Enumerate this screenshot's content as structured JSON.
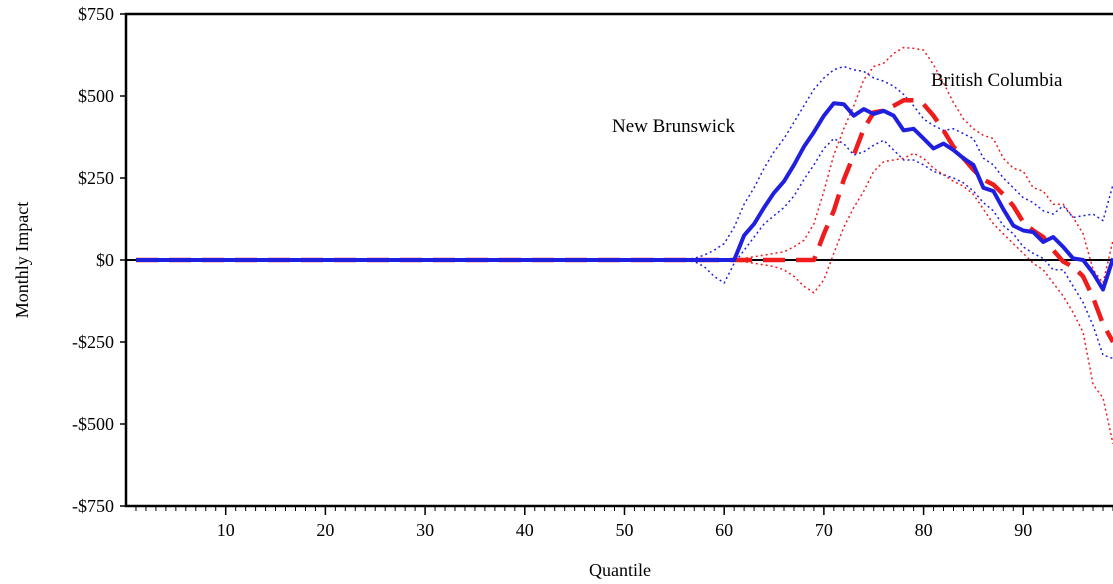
{
  "chart_data": {
    "type": "line",
    "title": "",
    "xlabel": "Quantile",
    "ylabel": "Monthly Impact",
    "xlim": [
      0,
      99
    ],
    "ylim": [
      -750,
      750
    ],
    "x_ticks": [
      10,
      20,
      30,
      40,
      50,
      60,
      70,
      80,
      90
    ],
    "y_ticks": [
      750,
      500,
      250,
      0,
      -250,
      -500,
      -750
    ],
    "y_tick_labels": [
      "$750",
      "$500",
      "$250",
      "$0",
      "-$250",
      "-$500",
      "-$750"
    ],
    "grid": false,
    "zero_line": true,
    "series": [
      {
        "name": "New Brunswick",
        "color": "#1f1fe0",
        "style": "solid-thick",
        "x": [
          1,
          10,
          20,
          30,
          40,
          50,
          55,
          58,
          60,
          61,
          62,
          63,
          64,
          65,
          66,
          67,
          68,
          69,
          70,
          71,
          72,
          73,
          74,
          75,
          76,
          77,
          78,
          79,
          80,
          81,
          82,
          83,
          84,
          85,
          86,
          87,
          88,
          89,
          90,
          91,
          92,
          93,
          94,
          95,
          96,
          97,
          98,
          99
        ],
        "values": [
          0,
          0,
          0,
          0,
          0,
          0,
          0,
          0,
          0,
          0,
          75,
          110,
          160,
          205,
          240,
          290,
          345,
          390,
          440,
          478,
          475,
          440,
          460,
          445,
          455,
          440,
          395,
          400,
          370,
          340,
          355,
          335,
          310,
          290,
          220,
          210,
          155,
          105,
          90,
          85,
          55,
          70,
          40,
          5,
          0,
          -40,
          -90,
          5
        ]
      },
      {
        "name": "British Columbia",
        "color": "#ee1c1c",
        "style": "dashed-thick",
        "x": [
          1,
          10,
          20,
          30,
          40,
          50,
          55,
          60,
          65,
          68,
          69,
          70,
          71,
          72,
          73,
          74,
          75,
          76,
          77,
          78,
          79,
          80,
          81,
          82,
          83,
          84,
          85,
          86,
          87,
          88,
          89,
          90,
          91,
          92,
          93,
          94,
          95,
          96,
          97,
          98,
          99
        ],
        "values": [
          0,
          0,
          0,
          0,
          0,
          0,
          0,
          0,
          0,
          0,
          0,
          80,
          150,
          245,
          320,
          400,
          450,
          455,
          470,
          487,
          487,
          475,
          440,
          395,
          345,
          310,
          275,
          245,
          230,
          200,
          165,
          115,
          90,
          70,
          30,
          -5,
          -20,
          -50,
          -115,
          -195,
          -250
        ]
      },
      {
        "name": "New Brunswick upper bound",
        "color": "#1f1fe0",
        "style": "dotted",
        "x": [
          1,
          10,
          20,
          30,
          40,
          50,
          55,
          57,
          58,
          59,
          60,
          61,
          62,
          63,
          64,
          65,
          66,
          67,
          68,
          69,
          70,
          71,
          72,
          73,
          74,
          75,
          76,
          77,
          78,
          79,
          80,
          81,
          82,
          83,
          84,
          85,
          86,
          87,
          88,
          89,
          90,
          91,
          92,
          93,
          94,
          95,
          96,
          97,
          98,
          99
        ],
        "values": [
          0,
          0,
          0,
          0,
          0,
          0,
          0,
          5,
          15,
          30,
          50,
          100,
          170,
          220,
          280,
          330,
          370,
          420,
          470,
          520,
          555,
          580,
          590,
          580,
          575,
          555,
          545,
          530,
          505,
          470,
          430,
          410,
          395,
          400,
          385,
          370,
          310,
          290,
          250,
          220,
          190,
          175,
          150,
          140,
          165,
          130,
          135,
          140,
          120,
          230
        ]
      },
      {
        "name": "New Brunswick lower bound",
        "color": "#1f1fe0",
        "style": "dotted",
        "x": [
          1,
          10,
          20,
          30,
          40,
          50,
          55,
          57,
          58,
          59,
          60,
          61,
          62,
          63,
          64,
          65,
          66,
          67,
          68,
          69,
          70,
          71,
          72,
          73,
          74,
          75,
          76,
          77,
          78,
          79,
          80,
          81,
          82,
          83,
          84,
          85,
          86,
          87,
          88,
          89,
          90,
          91,
          92,
          93,
          94,
          95,
          96,
          97,
          98,
          99
        ],
        "values": [
          0,
          0,
          0,
          0,
          0,
          0,
          0,
          -5,
          -20,
          -50,
          -70,
          -10,
          30,
          70,
          110,
          135,
          160,
          195,
          245,
          290,
          340,
          370,
          355,
          320,
          330,
          350,
          365,
          335,
          305,
          305,
          290,
          270,
          260,
          250,
          235,
          210,
          175,
          150,
          105,
          80,
          40,
          20,
          5,
          -30,
          -30,
          -80,
          -130,
          -200,
          -290,
          -300
        ]
      },
      {
        "name": "British Columbia upper bound",
        "color": "#ee1c1c",
        "style": "dotted",
        "x": [
          1,
          10,
          20,
          30,
          40,
          50,
          55,
          60,
          62,
          63,
          64,
          65,
          66,
          67,
          68,
          69,
          70,
          71,
          72,
          73,
          74,
          75,
          76,
          77,
          78,
          79,
          80,
          81,
          82,
          83,
          84,
          85,
          86,
          87,
          88,
          89,
          90,
          91,
          92,
          93,
          94,
          95,
          96,
          97,
          98,
          99
        ],
        "values": [
          0,
          0,
          0,
          0,
          0,
          0,
          0,
          0,
          5,
          10,
          15,
          20,
          25,
          40,
          60,
          110,
          210,
          320,
          400,
          470,
          550,
          590,
          600,
          630,
          648,
          645,
          640,
          595,
          540,
          480,
          430,
          400,
          380,
          370,
          310,
          280,
          270,
          220,
          210,
          170,
          170,
          130,
          80,
          -30,
          -70,
          60
        ]
      },
      {
        "name": "British Columbia lower bound",
        "color": "#ee1c1c",
        "style": "dotted",
        "x": [
          1,
          10,
          20,
          30,
          40,
          50,
          55,
          60,
          62,
          63,
          64,
          65,
          66,
          67,
          68,
          69,
          70,
          71,
          72,
          73,
          74,
          75,
          76,
          77,
          78,
          79,
          80,
          81,
          82,
          83,
          84,
          85,
          86,
          87,
          88,
          89,
          90,
          91,
          92,
          93,
          94,
          95,
          96,
          97,
          98,
          99
        ],
        "values": [
          0,
          0,
          0,
          0,
          0,
          0,
          0,
          0,
          -5,
          -10,
          -15,
          -20,
          -30,
          -50,
          -80,
          -100,
          -60,
          20,
          100,
          160,
          210,
          270,
          300,
          305,
          310,
          325,
          310,
          280,
          260,
          240,
          225,
          200,
          155,
          110,
          80,
          50,
          20,
          -10,
          -30,
          -70,
          -110,
          -160,
          -220,
          -380,
          -420,
          -560
        ]
      }
    ],
    "annotations": [
      {
        "text": "New Brunswick",
        "anchor_series": "New Brunswick"
      },
      {
        "text": "British Columbia",
        "anchor_series": "British Columbia"
      }
    ]
  }
}
